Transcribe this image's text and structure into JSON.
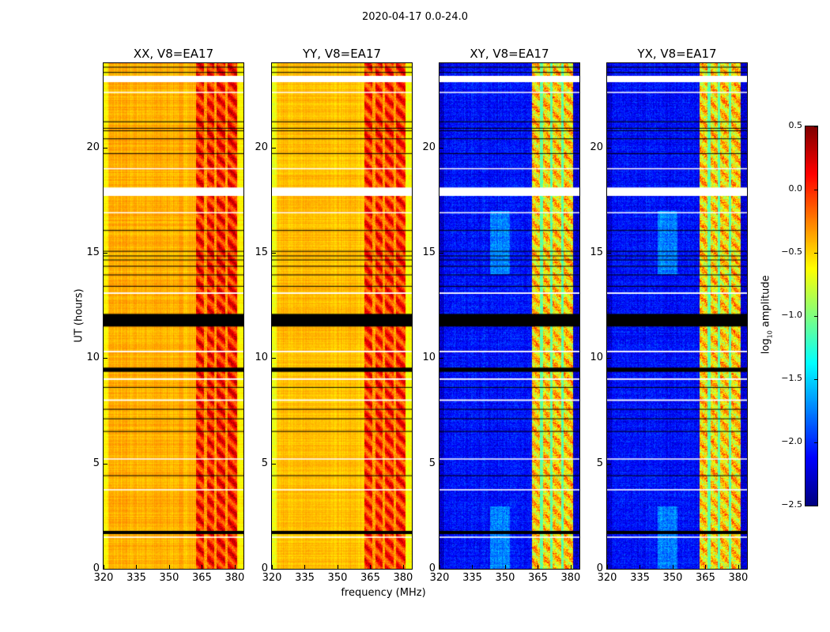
{
  "chart_data": {
    "type": "heatmap",
    "title": "2020-04-17 0.0-24.0",
    "xlabel": "frequency (MHz)",
    "ylabel": "UT (hours)",
    "xlim": [
      320,
      384
    ],
    "ylim": [
      0,
      24
    ],
    "xticks": [
      "320",
      "335",
      "350",
      "365",
      "380"
    ],
    "xtick_values": [
      320,
      335,
      350,
      365,
      380
    ],
    "yticks": [
      "0",
      "5",
      "10",
      "15",
      "20"
    ],
    "ytick_values": [
      0,
      5,
      10,
      15,
      20
    ],
    "colormap": "jet",
    "colorbar": {
      "label_main": "log",
      "label_sub": "10",
      "label_rest": " amplitude",
      "range": [
        -2.5,
        0.5
      ],
      "ticks": [
        "0.5",
        "0.0",
        "−0.5",
        "−1.0",
        "−1.5",
        "−2.0",
        "−2.5"
      ],
      "tick_values": [
        0.5,
        0.0,
        -0.5,
        -1.0,
        -1.5,
        -2.0,
        -2.5
      ]
    },
    "panels": [
      {
        "title": "XX, V8=EA17",
        "base": -0.4,
        "band": 0.05,
        "gap": -0.35
      },
      {
        "title": "YY, V8=EA17",
        "base": -0.45,
        "band": 0.0,
        "gap": -0.35
      },
      {
        "title": "XY, V8=EA17",
        "base": -2.1,
        "band": -0.5,
        "gap": -1.1
      },
      {
        "title": "YX, V8=EA17",
        "base": -2.1,
        "band": -0.5,
        "gap": -1.1
      }
    ],
    "rfi_band_mhz": [
      362,
      381
    ],
    "band_gaps_mhz": [
      366.5,
      371,
      376
    ],
    "flagged_hours_white": [
      [
        17.7,
        18.1
      ],
      [
        23.1,
        23.4
      ],
      [
        13.05,
        13.12
      ],
      [
        10.28,
        10.35
      ],
      [
        8.97,
        9.04
      ],
      [
        7.97,
        8.04
      ],
      [
        3.72,
        3.78
      ],
      [
        1.47,
        1.53
      ],
      [
        18.98,
        19.02
      ],
      [
        16.88,
        16.93
      ],
      [
        22.6,
        22.64
      ],
      [
        5.2,
        5.24
      ]
    ],
    "flagged_hours_black": [
      [
        11.5,
        12.1
      ],
      [
        9.35,
        9.55
      ],
      [
        1.65,
        1.8
      ],
      [
        21.2,
        21.24
      ],
      [
        20.9,
        20.93
      ],
      [
        20.78,
        20.81
      ],
      [
        20.4,
        20.43
      ],
      [
        19.7,
        19.73
      ],
      [
        16.05,
        16.08
      ],
      [
        15.06,
        15.09
      ],
      [
        14.84,
        14.87
      ],
      [
        14.65,
        14.68
      ],
      [
        14.35,
        14.38
      ],
      [
        13.94,
        13.97
      ],
      [
        13.4,
        13.43
      ],
      [
        8.6,
        8.63
      ],
      [
        7.56,
        7.59
      ],
      [
        7.11,
        7.14
      ],
      [
        6.51,
        6.54
      ],
      [
        4.41,
        4.44
      ],
      [
        23.55,
        23.58
      ],
      [
        23.8,
        23.83
      ]
    ]
  }
}
